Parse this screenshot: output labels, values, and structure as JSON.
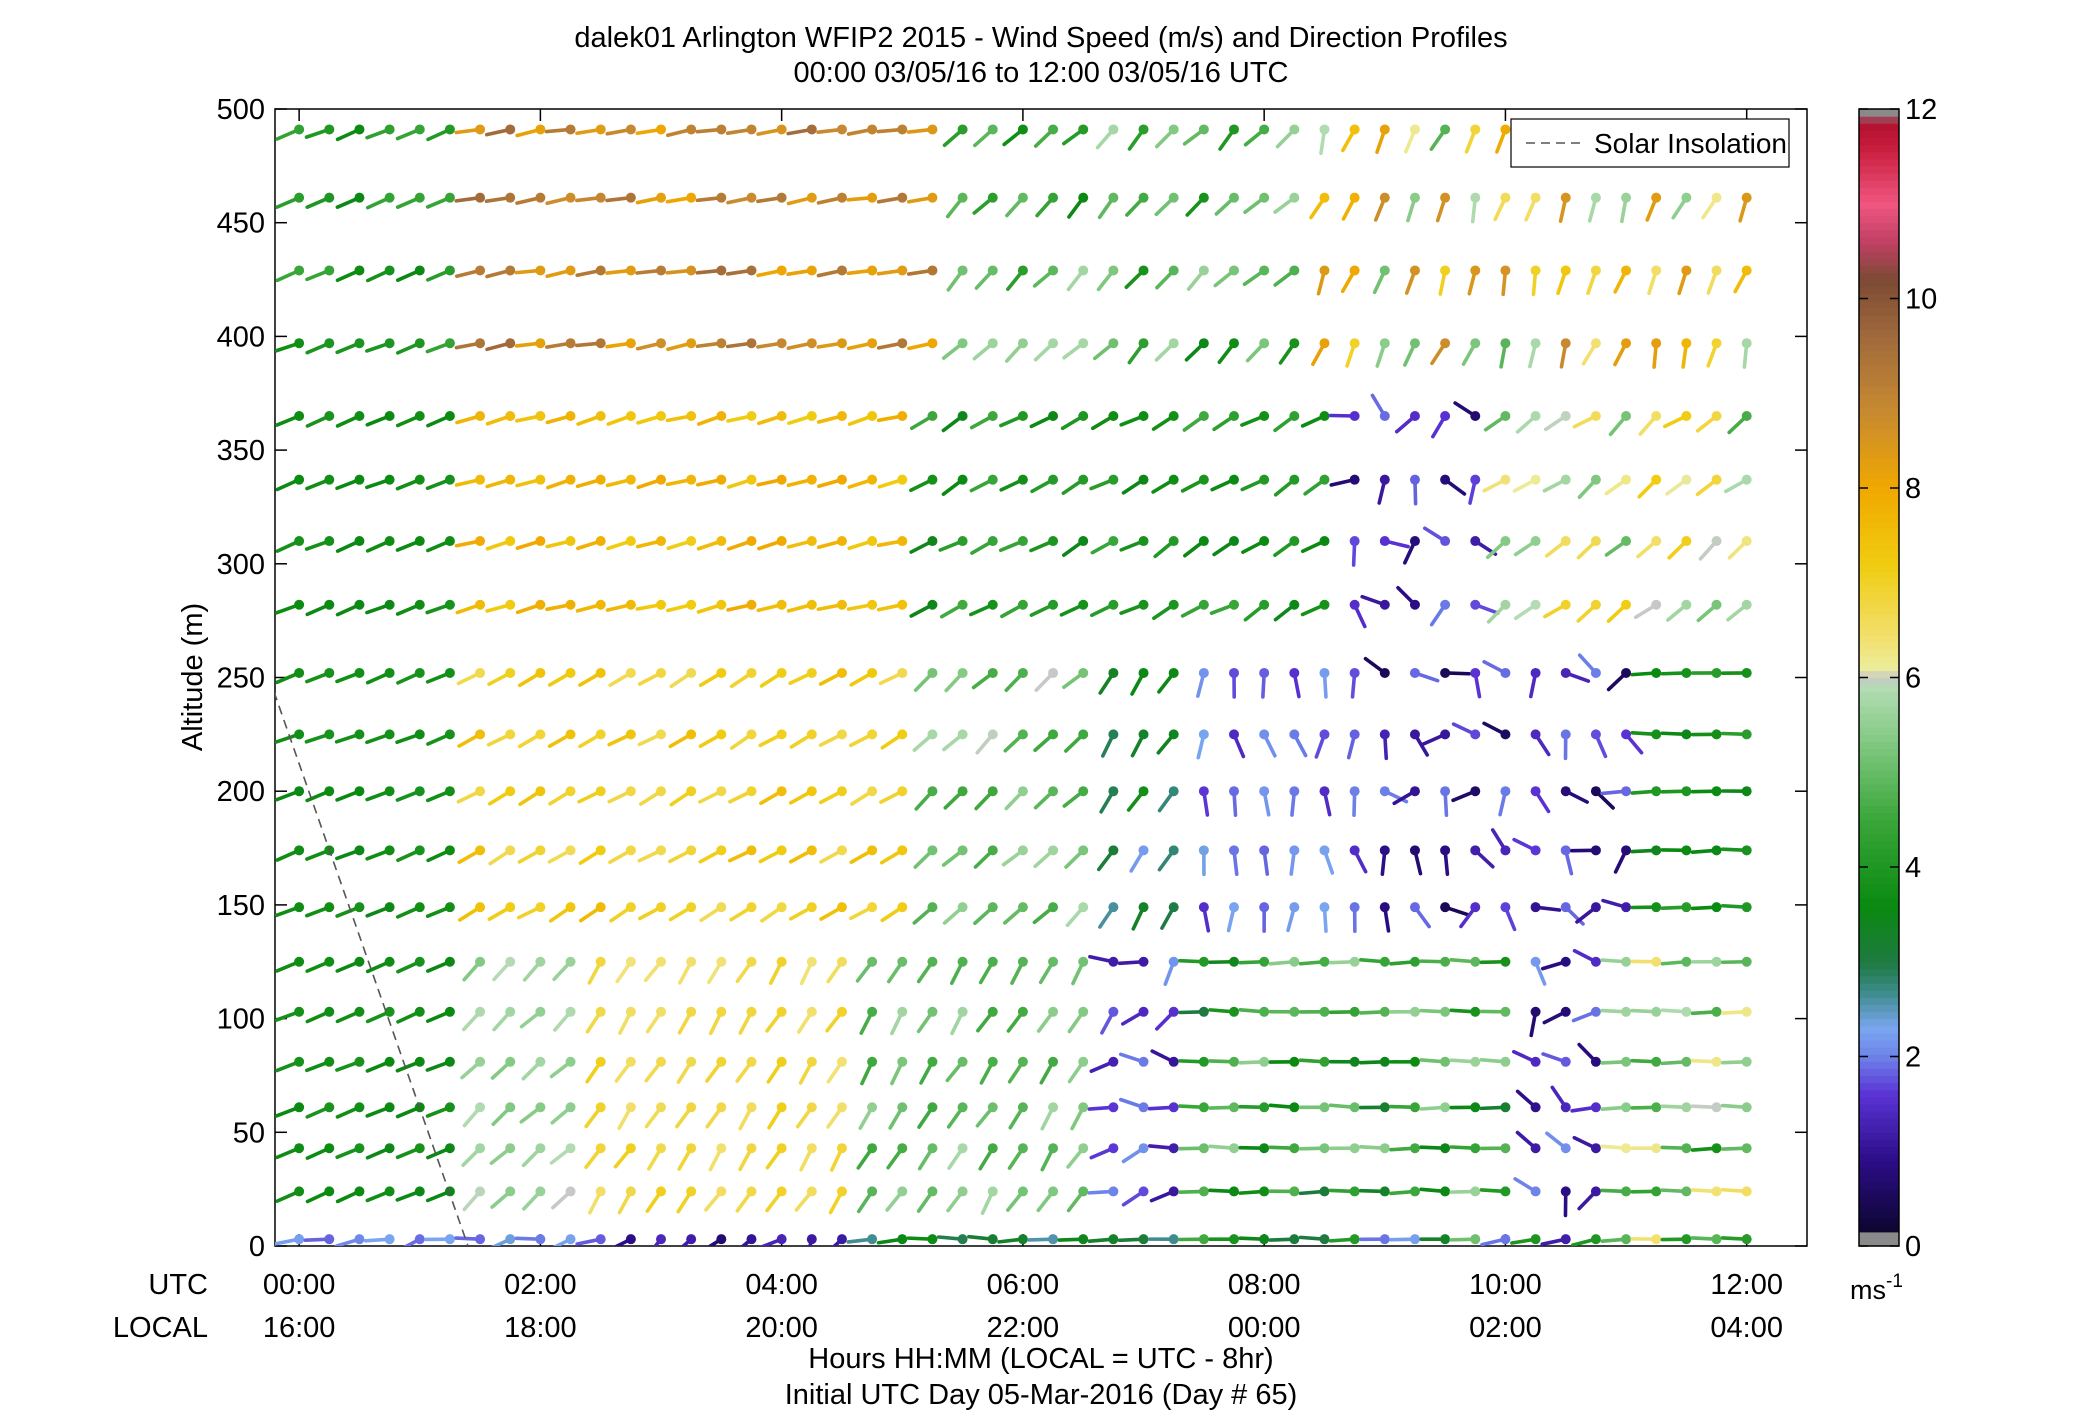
{
  "chart_data": {
    "type": "wind_barb_profile",
    "title_line1": "dalek01 Arlington WFIP2 2015 - Wind Speed (m/s) and Direction Profiles",
    "title_line2": "00:00 03/05/16 to 12:00 03/05/16  UTC",
    "ylabel": "Altitude (m)",
    "ylim": [
      0,
      500
    ],
    "yticks": [
      "0",
      "50",
      "100",
      "150",
      "200",
      "250",
      "300",
      "350",
      "400",
      "450",
      "500"
    ],
    "xlim_hours": [
      -0.2,
      12.5
    ],
    "x_axis_row1_name": "UTC",
    "x_axis_row2_name": "LOCAL",
    "xticks_hours": [
      0,
      2,
      4,
      6,
      8,
      10,
      12
    ],
    "xtick_utc_labels": [
      "00:00",
      "02:00",
      "04:00",
      "06:00",
      "08:00",
      "10:00",
      "12:00"
    ],
    "xtick_local_labels": [
      "16:00",
      "18:00",
      "20:00",
      "22:00",
      "00:00",
      "02:00",
      "04:00"
    ],
    "xlabel_line1": "Hours HH:MM  (LOCAL = UTC - 8hr)",
    "xlabel_line2": "Initial UTC Day 05-Mar-2016 (Day # 65)",
    "legend_entries": [
      "Solar Insolation"
    ],
    "legend_placement": "top-right",
    "solar_insolation": {
      "x_hours": [
        -0.25,
        1.4
      ],
      "y_m": [
        250,
        0
      ]
    },
    "colorbar": {
      "range": [
        0,
        12
      ],
      "ticks": [
        "0",
        "2",
        "4",
        "6",
        "8",
        "10",
        "12"
      ],
      "unit_base": "ms",
      "unit_exponent": "-1",
      "stops": [
        {
          "v": 0,
          "c": "#8a8a8a"
        },
        {
          "v": 0.12,
          "c": "#8a8a8a"
        },
        {
          "v": 0.15,
          "c": "#0d0630"
        },
        {
          "v": 0.9,
          "c": "#2b0d86"
        },
        {
          "v": 1.6,
          "c": "#5a32d4"
        },
        {
          "v": 2.0,
          "c": "#6d82e8"
        },
        {
          "v": 2.3,
          "c": "#7aa6f0"
        },
        {
          "v": 2.7,
          "c": "#3a8a86"
        },
        {
          "v": 3.0,
          "c": "#1e7a40"
        },
        {
          "v": 3.6,
          "c": "#0a8a10"
        },
        {
          "v": 4.5,
          "c": "#3aa63a"
        },
        {
          "v": 5.3,
          "c": "#80c880"
        },
        {
          "v": 5.9,
          "c": "#b4dcb4"
        },
        {
          "v": 6.0,
          "c": "#c8c8c8"
        },
        {
          "v": 6.1,
          "c": "#ecec9a"
        },
        {
          "v": 6.4,
          "c": "#f2e070"
        },
        {
          "v": 7.2,
          "c": "#f0cc10"
        },
        {
          "v": 8.0,
          "c": "#f0a800"
        },
        {
          "v": 8.8,
          "c": "#c88a30"
        },
        {
          "v": 9.6,
          "c": "#a06a3c"
        },
        {
          "v": 10.2,
          "c": "#7c4a34"
        },
        {
          "v": 10.6,
          "c": "#c04064"
        },
        {
          "v": 11.0,
          "c": "#f05680"
        },
        {
          "v": 11.6,
          "c": "#c81c3c"
        },
        {
          "v": 11.88,
          "c": "#b01030"
        },
        {
          "v": 11.9,
          "c": "#8a8a8a"
        },
        {
          "v": 12,
          "c": "#8a8a8a"
        }
      ]
    },
    "time_hours": [
      0,
      0.25,
      0.5,
      0.75,
      1,
      1.25,
      1.5,
      1.75,
      2,
      2.25,
      2.5,
      2.75,
      3,
      3.25,
      3.5,
      3.75,
      4,
      4.25,
      4.5,
      4.75,
      5,
      5.25,
      5.5,
      5.75,
      6,
      6.25,
      6.5,
      6.75,
      7,
      7.25,
      7.5,
      7.75,
      8,
      8.25,
      8.5,
      8.75,
      9,
      9.25,
      9.5,
      9.75,
      10,
      10.25,
      10.5,
      10.75,
      11,
      11.25,
      11.5,
      11.75,
      12
    ],
    "altitudes_m": [
      3,
      24,
      43,
      61,
      81,
      103,
      125,
      149,
      174,
      200,
      225,
      252,
      282,
      310,
      337,
      365,
      397,
      429,
      461,
      491
    ],
    "segments": [
      {
        "alt_min": 0,
        "alt_max": 10,
        "t0": 0,
        "t1": 2.6,
        "speed": [
          1.8,
          2.4
        ],
        "dir": [
          240,
          275
        ]
      },
      {
        "alt_min": 0,
        "alt_max": 10,
        "t0": 2.6,
        "t1": 4.6,
        "speed": [
          0.6,
          1.8
        ],
        "dir": [
          180,
          250
        ]
      },
      {
        "alt_min": 0,
        "alt_max": 10,
        "t0": 4.6,
        "t1": 6.0,
        "speed": [
          2.5,
          3.8
        ],
        "dir": [
          260,
          280
        ]
      },
      {
        "alt_min": 0,
        "alt_max": 10,
        "t0": 6.0,
        "t1": 9.5,
        "speed": [
          1.8,
          4.6
        ],
        "dir": [
          265,
          275
        ]
      },
      {
        "alt_min": 0,
        "alt_max": 10,
        "t0": 9.5,
        "t1": 10.8,
        "speed": [
          0.8,
          6.8
        ],
        "dir": [
          255,
          275
        ]
      },
      {
        "alt_min": 0,
        "alt_max": 10,
        "t0": 10.8,
        "t1": 12.0,
        "speed": [
          4.0,
          7.6
        ],
        "dir": [
          265,
          275
        ]
      },
      {
        "alt_min": 10,
        "alt_max": 130,
        "t0": 0,
        "t1": 1.4,
        "speed": [
          3.5,
          3.9
        ],
        "dir": [
          245,
          250
        ]
      },
      {
        "alt_min": 10,
        "alt_max": 130,
        "t0": 1.4,
        "t1": 2.4,
        "speed": [
          5.3,
          6.0
        ],
        "dir": [
          220,
          235
        ]
      },
      {
        "alt_min": 10,
        "alt_max": 130,
        "t0": 2.4,
        "t1": 4.5,
        "speed": [
          6.3,
          7.1
        ],
        "dir": [
          205,
          220
        ]
      },
      {
        "alt_min": 10,
        "alt_max": 130,
        "t0": 4.5,
        "t1": 6.5,
        "speed": [
          4.5,
          5.8
        ],
        "dir": [
          205,
          220
        ]
      },
      {
        "alt_min": 10,
        "alt_max": 130,
        "t0": 6.5,
        "t1": 7.3,
        "speed": [
          1.0,
          2.2
        ],
        "dir": [
          200,
          300
        ]
      },
      {
        "alt_min": 10,
        "alt_max": 130,
        "t0": 7.3,
        "t1": 10.0,
        "speed": [
          3.0,
          5.6
        ],
        "dir": [
          265,
          275
        ]
      },
      {
        "alt_min": 10,
        "alt_max": 130,
        "t0": 10.0,
        "t1": 10.8,
        "speed": [
          0.6,
          2.2
        ],
        "dir": [
          150,
          330
        ]
      },
      {
        "alt_min": 10,
        "alt_max": 130,
        "t0": 10.8,
        "t1": 12.0,
        "speed": [
          3.8,
          6.8
        ],
        "dir": [
          265,
          275
        ]
      },
      {
        "alt_min": 130,
        "alt_max": 270,
        "t0": 0,
        "t1": 1.4,
        "speed": [
          3.5,
          3.9
        ],
        "dir": [
          245,
          252
        ]
      },
      {
        "alt_min": 130,
        "alt_max": 270,
        "t0": 1.4,
        "t1": 5.0,
        "speed": [
          6.6,
          7.6
        ],
        "dir": [
          235,
          245
        ]
      },
      {
        "alt_min": 130,
        "alt_max": 270,
        "t0": 5.0,
        "t1": 6.6,
        "speed": [
          4.5,
          6.0
        ],
        "dir": [
          220,
          235
        ]
      },
      {
        "alt_min": 130,
        "alt_max": 270,
        "t0": 6.6,
        "t1": 7.3,
        "speed": [
          2.1,
          3.8
        ],
        "dir": [
          205,
          220
        ]
      },
      {
        "alt_min": 130,
        "alt_max": 270,
        "t0": 7.3,
        "t1": 8.8,
        "speed": [
          1.4,
          2.4
        ],
        "dir": [
          150,
          200
        ]
      },
      {
        "alt_min": 130,
        "alt_max": 270,
        "t0": 8.8,
        "t1": 11.2,
        "speed": [
          0.4,
          2.0
        ],
        "dir": [
          90,
          330
        ]
      },
      {
        "alt_min": 130,
        "alt_max": 270,
        "t0": 11.2,
        "t1": 12.0,
        "speed": [
          3.4,
          4.2
        ],
        "dir": [
          265,
          275
        ]
      },
      {
        "alt_min": 270,
        "alt_max": 380,
        "t0": 0,
        "t1": 1.4,
        "speed": [
          3.5,
          3.9
        ],
        "dir": [
          245,
          252
        ]
      },
      {
        "alt_min": 270,
        "alt_max": 380,
        "t0": 1.4,
        "t1": 5.0,
        "speed": [
          7.1,
          8.0
        ],
        "dir": [
          250,
          260
        ]
      },
      {
        "alt_min": 270,
        "alt_max": 380,
        "t0": 5.0,
        "t1": 8.5,
        "speed": [
          3.4,
          4.6
        ],
        "dir": [
          230,
          250
        ]
      },
      {
        "alt_min": 270,
        "alt_max": 380,
        "t0": 8.5,
        "t1": 9.8,
        "speed": [
          0.6,
          2.0
        ],
        "dir": [
          100,
          330
        ]
      },
      {
        "alt_min": 270,
        "alt_max": 380,
        "t0": 9.8,
        "t1": 12.0,
        "speed": [
          4.6,
          7.2
        ],
        "dir": [
          220,
          245
        ]
      },
      {
        "alt_min": 380,
        "alt_max": 520,
        "t0": 0,
        "t1": 1.4,
        "speed": [
          3.5,
          4.5
        ],
        "dir": [
          245,
          252
        ]
      },
      {
        "alt_min": 380,
        "alt_max": 520,
        "t0": 1.4,
        "t1": 5.3,
        "speed": [
          8.0,
          9.6
        ],
        "dir": [
          255,
          265
        ]
      },
      {
        "alt_min": 380,
        "alt_max": 520,
        "t0": 5.3,
        "t1": 8.3,
        "speed": [
          3.5,
          5.8
        ],
        "dir": [
          215,
          235
        ]
      },
      {
        "alt_min": 380,
        "alt_max": 520,
        "t0": 8.3,
        "t1": 12.0,
        "speed": [
          4.8,
          8.8
        ],
        "dir": [
          185,
          215
        ]
      }
    ]
  }
}
